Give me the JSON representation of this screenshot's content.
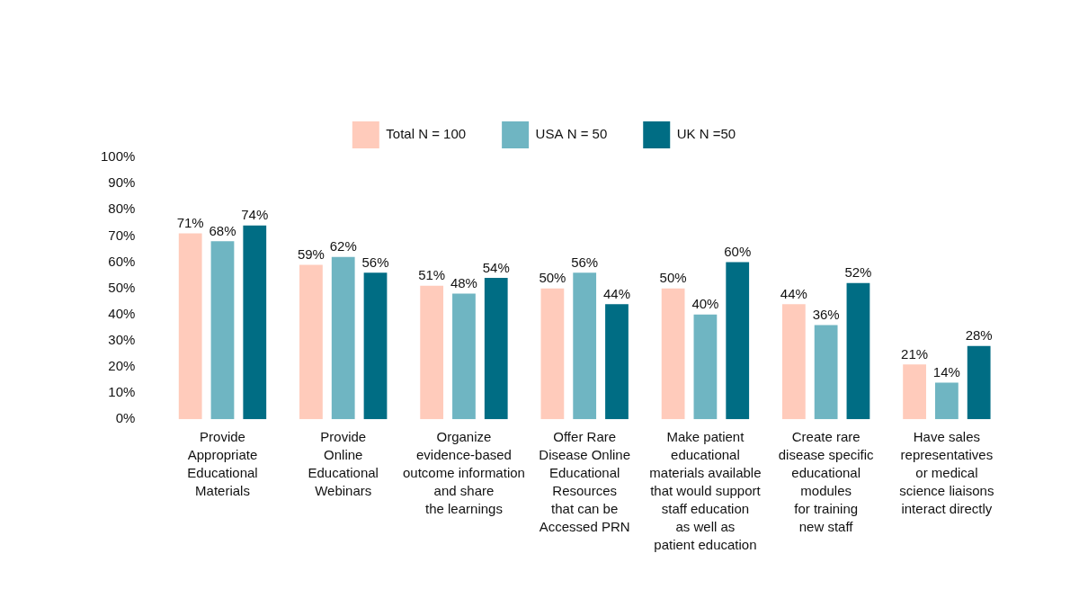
{
  "chart_data": {
    "type": "bar",
    "categories": [
      "Provide\nAppropriate\nEducational\nMaterials",
      "Provide\nOnline\nEducational\nWebinars",
      "Organize\nevidence-based\noutcome information\nand share\nthe learnings",
      "Offer Rare\nDisease Online\nEducational\nResources\nthat can be\nAccessed PRN",
      "Make patient\neducational\nmaterials available\nthat would support\nstaff education\nas well as\npatient education",
      "Create rare\ndisease specific\neducational\nmodules\nfor training\nnew staff",
      "Have sales\nrepresentatives\nor medical\nscience liaisons\ninteract directly"
    ],
    "series": [
      {
        "name": "Total N = 100",
        "color": "#ffcbbb",
        "values": [
          71,
          59,
          51,
          50,
          50,
          44,
          21
        ],
        "value_labels": [
          "71%",
          "59%",
          "51%",
          "50%",
          "50%",
          "44%",
          "21%"
        ]
      },
      {
        "name": "USA N = 50",
        "color": "#6fb5c2",
        "values": [
          68,
          62,
          48,
          56,
          40,
          36,
          14
        ],
        "value_labels": [
          "68%",
          "62%",
          "48%",
          "56%",
          "40%",
          "36%",
          "14%"
        ]
      },
      {
        "name": "UK N =50",
        "color": "#006d84",
        "values": [
          74,
          56,
          54,
          44,
          60,
          52,
          28
        ],
        "value_labels": [
          "74%",
          "56%",
          "54%",
          "44%",
          "60%",
          "52%",
          "28%"
        ]
      }
    ],
    "ylim": [
      0,
      100
    ],
    "yticks": [
      {
        "value": 0,
        "label": "0%"
      },
      {
        "value": 10,
        "label": "10%"
      },
      {
        "value": 20,
        "label": "20%"
      },
      {
        "value": 30,
        "label": "30%"
      },
      {
        "value": 40,
        "label": "40%"
      },
      {
        "value": 50,
        "label": "50%"
      },
      {
        "value": 60,
        "label": "60%"
      },
      {
        "value": 70,
        "label": "70%"
      },
      {
        "value": 80,
        "label": "80%"
      },
      {
        "value": 90,
        "label": "90%"
      },
      {
        "value": 100,
        "label": "100%"
      }
    ],
    "grid": false,
    "legend": "top",
    "data_labels": true
  }
}
